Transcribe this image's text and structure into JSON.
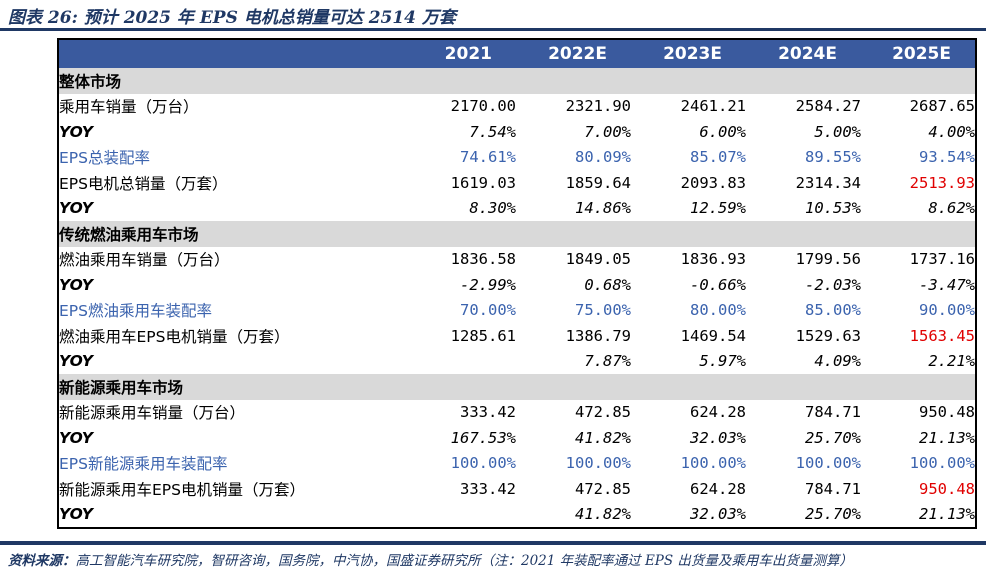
{
  "title": "图表 26: 预计 2025 年 EPS 电机总销量可达 2514 万套",
  "footer": {
    "source_label": "资料来源：",
    "source_text": "高工智能汽车研究院，智研咨询，国务院，中汽协，国盛证券研究所（注：2021 年装配率通过 EPS 出货量及乘用车出货量测算）"
  },
  "colors": {
    "accent_navy": "#1f3864",
    "header_blue": "#3a5a9e",
    "data_blue": "#3b63ae",
    "highlight_red": "#e00000",
    "section_gray": "#d9d9d9"
  },
  "chart_data": {
    "type": "table",
    "columns": [
      "",
      "2021",
      "2022E",
      "2023E",
      "2024E",
      "2025E"
    ],
    "rows": [
      {
        "type": "section",
        "label": "整体市场"
      },
      {
        "type": "data",
        "label": "乘用车销量（万台）",
        "values": [
          "2170.00",
          "2321.90",
          "2461.21",
          "2584.27",
          "2687.65"
        ]
      },
      {
        "type": "yoy",
        "label": "YOY",
        "values": [
          "7.54%",
          "7.00%",
          "6.00%",
          "5.00%",
          "4.00%"
        ]
      },
      {
        "type": "rate",
        "label": "EPS总装配率",
        "values": [
          "74.61%",
          "80.09%",
          "85.07%",
          "89.55%",
          "93.54%"
        ]
      },
      {
        "type": "data",
        "label": "EPS电机总销量（万套）",
        "values": [
          "1619.03",
          "1859.64",
          "2093.83",
          "2314.34",
          "2513.93"
        ],
        "last_red": true
      },
      {
        "type": "yoy",
        "label": "YOY",
        "values": [
          "8.30%",
          "14.86%",
          "12.59%",
          "10.53%",
          "8.62%"
        ]
      },
      {
        "type": "section",
        "label": "传统燃油乘用车市场"
      },
      {
        "type": "data",
        "label": "燃油乘用车销量（万台）",
        "values": [
          "1836.58",
          "1849.05",
          "1836.93",
          "1799.56",
          "1737.16"
        ]
      },
      {
        "type": "yoy",
        "label": "YOY",
        "values": [
          "-2.99%",
          "0.68%",
          "-0.66%",
          "-2.03%",
          "-3.47%"
        ]
      },
      {
        "type": "rate",
        "label": "EPS燃油乘用车装配率",
        "values": [
          "70.00%",
          "75.00%",
          "80.00%",
          "85.00%",
          "90.00%"
        ]
      },
      {
        "type": "data",
        "label": "燃油乘用车EPS电机销量（万套）",
        "values": [
          "1285.61",
          "1386.79",
          "1469.54",
          "1529.63",
          "1563.45"
        ],
        "last_red": true
      },
      {
        "type": "yoy",
        "label": "YOY",
        "values": [
          "",
          "7.87%",
          "5.97%",
          "4.09%",
          "2.21%"
        ]
      },
      {
        "type": "section",
        "label": "新能源乘用车市场"
      },
      {
        "type": "data",
        "label": "新能源乘用车销量（万台）",
        "values": [
          "333.42",
          "472.85",
          "624.28",
          "784.71",
          "950.48"
        ]
      },
      {
        "type": "yoy",
        "label": "YOY",
        "values": [
          "167.53%",
          "41.82%",
          "32.03%",
          "25.70%",
          "21.13%"
        ]
      },
      {
        "type": "rate",
        "label": "EPS新能源乘用车装配率",
        "values": [
          "100.00%",
          "100.00%",
          "100.00%",
          "100.00%",
          "100.00%"
        ]
      },
      {
        "type": "data",
        "label": "新能源乘用车EPS电机销量（万套）",
        "values": [
          "333.42",
          "472.85",
          "624.28",
          "784.71",
          "950.48"
        ],
        "last_red": true
      },
      {
        "type": "yoy",
        "label": "YOY",
        "values": [
          "",
          "41.82%",
          "32.03%",
          "25.70%",
          "21.13%"
        ]
      }
    ]
  }
}
